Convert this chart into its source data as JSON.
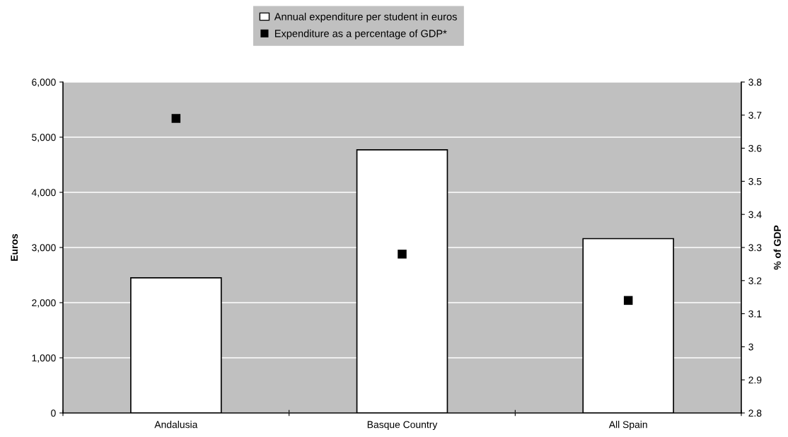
{
  "chart_data": {
    "type": "bar",
    "categories": [
      "Andalusia",
      "Basque Country",
      "All Spain"
    ],
    "series": [
      {
        "name": "Annual expenditure per student in euros",
        "color": "#ffffff",
        "values": [
          2450,
          4770,
          3160
        ]
      },
      {
        "name": "Expenditure as a percentage of GDP*",
        "type": "scatter",
        "axis": "y2",
        "marker": "square",
        "color": "#000000",
        "values": [
          3.69,
          3.28,
          3.14
        ]
      }
    ],
    "ylabel": "Euros",
    "y2label": "% of GDP",
    "ylim": [
      0,
      6000
    ],
    "yticks": [
      {
        "value": 0,
        "label": "0"
      },
      {
        "value": 1000,
        "label": "1,000"
      },
      {
        "value": 2000,
        "label": "2,000"
      },
      {
        "value": 3000,
        "label": "3,000"
      },
      {
        "value": 4000,
        "label": "4,000"
      },
      {
        "value": 5000,
        "label": "5,000"
      },
      {
        "value": 6000,
        "label": "6,000"
      }
    ],
    "y2lim": [
      2.8,
      3.8
    ],
    "y2ticks": [
      2.8,
      2.9,
      3,
      3.1,
      3.2,
      3.3,
      3.4,
      3.5,
      3.6,
      3.7,
      3.8
    ],
    "grid": "y",
    "legend": "top"
  }
}
